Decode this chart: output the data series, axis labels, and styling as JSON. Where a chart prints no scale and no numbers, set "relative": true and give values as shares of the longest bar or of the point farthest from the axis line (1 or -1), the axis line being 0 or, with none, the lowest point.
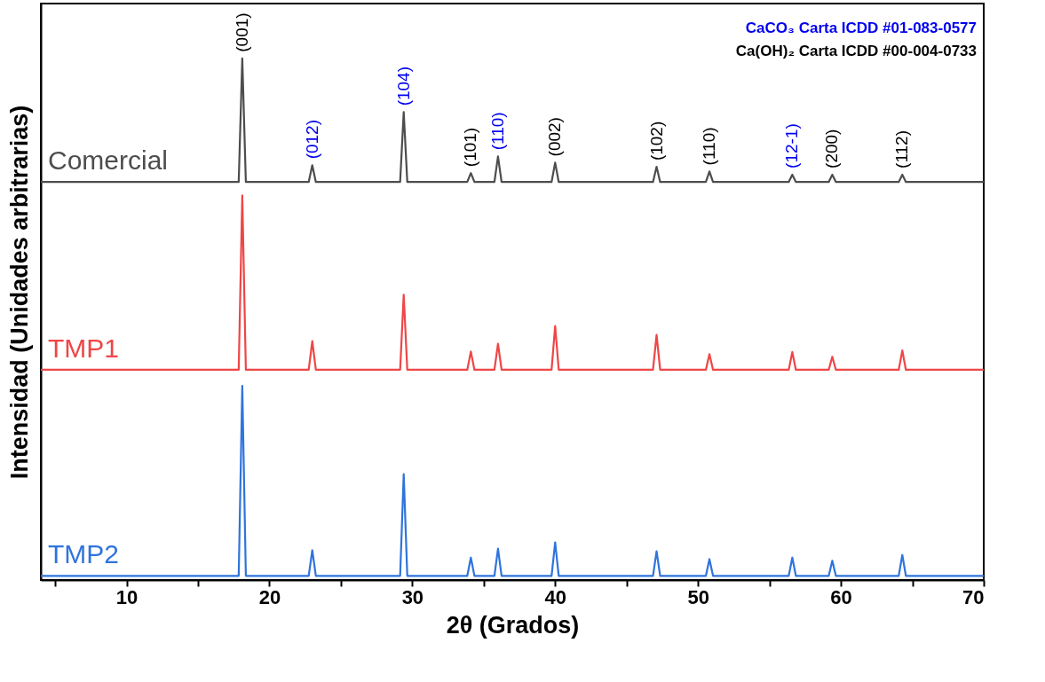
{
  "chart_data": {
    "type": "line",
    "relative": true,
    "xlabel": "2θ (Grados)",
    "ylabel": "Intensidad (Unidades arbitrarias)",
    "xlim": [
      4,
      70
    ],
    "xticks": [
      {
        "value": 5,
        "label": null
      },
      10,
      {
        "value": 15,
        "label": null
      },
      20,
      {
        "value": 25,
        "label": null
      },
      30,
      {
        "value": 35,
        "label": null
      },
      40,
      {
        "value": 45,
        "label": null
      },
      50,
      {
        "value": 55,
        "label": null
      },
      60,
      {
        "value": 65,
        "label": null
      },
      70
    ],
    "x": [
      4,
      17.85,
      18.1,
      18.35,
      22.75,
      23.0,
      23.25,
      29.15,
      29.4,
      29.65,
      33.85,
      34.1,
      34.35,
      35.75,
      36.0,
      36.25,
      39.75,
      40.0,
      40.25,
      46.85,
      47.1,
      47.35,
      50.55,
      50.8,
      51.05,
      56.35,
      56.6,
      56.85,
      59.15,
      59.4,
      59.65,
      64.05,
      64.3,
      64.55,
      70
    ],
    "series": [
      {
        "name": "Comercial",
        "color": "#4d4d4d",
        "values": [
          0.763,
          0.763,
          1.0,
          0.763,
          0.763,
          0.795,
          0.763,
          0.763,
          0.897,
          0.763,
          0.763,
          0.78,
          0.763,
          0.763,
          0.812,
          0.763,
          0.763,
          0.8,
          0.763,
          0.763,
          0.792,
          0.763,
          0.763,
          0.783,
          0.763,
          0.763,
          0.777,
          0.763,
          0.763,
          0.777,
          0.763,
          0.763,
          0.777,
          0.763,
          0.763
        ]
      },
      {
        "name": "TMP1",
        "color": "#ef4646",
        "values": [
          0.403,
          0.403,
          0.737,
          0.403,
          0.403,
          0.458,
          0.403,
          0.403,
          0.547,
          0.403,
          0.403,
          0.438,
          0.403,
          0.403,
          0.453,
          0.403,
          0.403,
          0.487,
          0.403,
          0.403,
          0.47,
          0.403,
          0.403,
          0.433,
          0.403,
          0.403,
          0.437,
          0.403,
          0.403,
          0.428,
          0.403,
          0.403,
          0.44,
          0.403,
          0.403
        ]
      },
      {
        "name": "TMP2",
        "color": "#2f74dc",
        "values": [
          0.008,
          0.008,
          0.372,
          0.008,
          0.008,
          0.057,
          0.008,
          0.008,
          0.203,
          0.008,
          0.008,
          0.043,
          0.008,
          0.008,
          0.06,
          0.008,
          0.008,
          0.072,
          0.008,
          0.008,
          0.055,
          0.008,
          0.008,
          0.04,
          0.008,
          0.008,
          0.043,
          0.008,
          0.008,
          0.037,
          0.008,
          0.008,
          0.048,
          0.008,
          0.008
        ]
      }
    ],
    "annotations": [
      "CaCO₃ Carta ICDD #01-083-0577",
      "Ca(OH)₂ Carta ICDD #00-004-0733",
      {
        "text": "(001)",
        "x": 18.1,
        "y": 1.0
      },
      {
        "text": "(012)",
        "x": 23.0,
        "y": 0.795
      },
      {
        "text": "(104)",
        "x": 29.4,
        "y": 0.897
      },
      {
        "text": "(101)",
        "x": 34.1,
        "y": 0.78
      },
      {
        "text": "(110)",
        "x": 36.0,
        "y": 0.812
      },
      {
        "text": "(002)",
        "x": 40.0,
        "y": 0.8
      },
      {
        "text": "(102)",
        "x": 47.1,
        "y": 0.792
      },
      {
        "text": "(110)",
        "x": 50.8,
        "y": 0.783
      },
      {
        "text": "(12-1)",
        "x": 56.6,
        "y": 0.777
      },
      {
        "text": "(200)",
        "x": 59.4,
        "y": 0.777
      },
      {
        "text": "(112)",
        "x": 64.3,
        "y": 0.777
      }
    ],
    "grid": false,
    "legend": false,
    "tick_labels": "x",
    "marker": "none",
    "line_style": "solid"
  }
}
